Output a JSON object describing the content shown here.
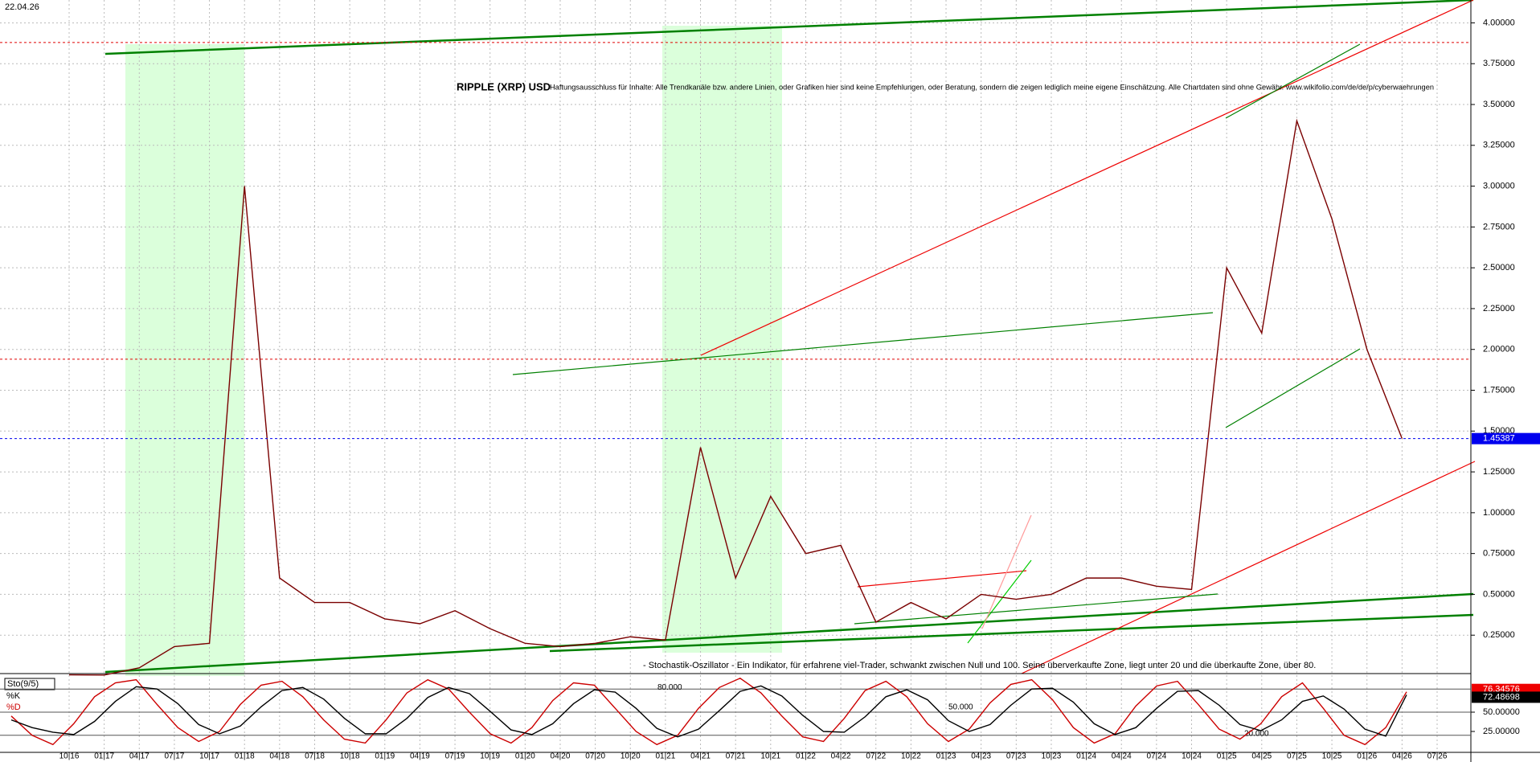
{
  "date_label": "22.04.26",
  "chart_data": [
    {
      "type": "line",
      "title": "RIPPLE (XRP) USD",
      "subtitle": "Haftungsausschluss für Inhalte: Alle Trendkanäle bzw. andere Linien, oder Grafiken hier sind keine Empfehlungen, oder Beratung, sondern die zeigen lediglich meine eigene Einschätzung. Alle Chartdaten sind ohne Gewähr. www.wikifolio.com/de/de/p/cyberwaehrungen",
      "categories": [
        "10|16",
        "01|17",
        "04|17",
        "07|17",
        "10|17",
        "01|18",
        "04|18",
        "07|18",
        "10|18",
        "01|19",
        "04|19",
        "07|19",
        "10|19",
        "01|20",
        "04|20",
        "07|20",
        "10|20",
        "01|21",
        "04|21",
        "07|21",
        "10|21",
        "01|22",
        "04|22",
        "07|22",
        "10|22",
        "01|23",
        "04|23",
        "07|23",
        "10|23",
        "01|24",
        "04|24",
        "07|24",
        "10|24",
        "01|25",
        "04|25",
        "07|25",
        "10|25",
        "01|26",
        "04|26",
        "07|26"
      ],
      "series": [
        {
          "name": "XRP USD",
          "color": "#7a0000",
          "values": [
            0.007,
            0.006,
            0.05,
            0.18,
            0.2,
            3.0,
            0.6,
            0.45,
            0.45,
            0.35,
            0.32,
            0.4,
            0.29,
            0.2,
            0.18,
            0.2,
            0.24,
            0.22,
            1.4,
            0.6,
            1.1,
            0.75,
            0.8,
            0.33,
            0.45,
            0.35,
            0.5,
            0.47,
            0.5,
            0.6,
            0.6,
            0.55,
            0.53,
            2.5,
            2.1,
            3.4,
            2.8,
            2.0,
            1.45387,
            null
          ]
        }
      ],
      "ylim": [
        0,
        4.14
      ],
      "yticks": [
        {
          "value": 0.25,
          "label": "0.25000"
        },
        {
          "value": 0.5,
          "label": "0.50000"
        },
        {
          "value": 0.75,
          "label": "0.75000"
        },
        {
          "value": 1,
          "label": "1.00000"
        },
        {
          "value": 1.25,
          "label": "1.25000"
        },
        {
          "value": 1.5,
          "label": "1.50000"
        },
        {
          "value": 1.75,
          "label": "1.75000"
        },
        {
          "value": 2,
          "label": "2.00000"
        },
        {
          "value": 2.25,
          "label": "2.25000"
        },
        {
          "value": 2.5,
          "label": "2.50000"
        },
        {
          "value": 2.75,
          "label": "2.75000"
        },
        {
          "value": 3,
          "label": "3.00000"
        },
        {
          "value": 3.25,
          "label": "3.25000"
        },
        {
          "value": 3.5,
          "label": "3.50000"
        },
        {
          "value": 3.75,
          "label": "3.75000"
        },
        {
          "value": 4,
          "label": "4.00000"
        }
      ],
      "hlines": [
        {
          "value": 3.88,
          "color": "#e00000"
        },
        {
          "value": 1.94,
          "color": "#e00000"
        }
      ],
      "last_color": "#0000ee",
      "grid": true
    },
    {
      "type": "line",
      "title": "Sto(9/5)",
      "annotation": "- Stochastik-Oszillator - Ein Indikator, für erfahrene viel-Trader, schwankt zwischen Null und 100. Seine überverkaufte Zone, liegt unter 20 und die überkaufte Zone, über 80.",
      "series": [
        {
          "name": "%K",
          "color": "#cc0000",
          "values": [
            45,
            20,
            8,
            35,
            70,
            88,
            92,
            60,
            30,
            12,
            25,
            60,
            85,
            90,
            70,
            40,
            15,
            10,
            40,
            75,
            92,
            80,
            50,
            22,
            10,
            30,
            65,
            88,
            85,
            55,
            25,
            8,
            20,
            55,
            82,
            94,
            75,
            45,
            18,
            12,
            42,
            78,
            90,
            70,
            35,
            12,
            28,
            62,
            86,
            92,
            66,
            30,
            10,
            22,
            58,
            84,
            90,
            60,
            28,
            15,
            35,
            70,
            88,
            55,
            20,
            8,
            30,
            76.34576
          ]
        },
        {
          "name": "%D",
          "color": "#000000",
          "values": [
            40,
            30,
            24,
            21,
            38,
            64,
            83,
            80,
            61,
            34,
            22,
            32,
            57,
            78,
            82,
            67,
            42,
            22,
            22,
            42,
            69,
            82,
            74,
            51,
            27,
            21,
            35,
            61,
            79,
            76,
            55,
            29,
            18,
            28,
            52,
            77,
            84,
            71,
            46,
            25,
            24,
            44,
            70,
            79,
            66,
            39,
            25,
            34,
            59,
            80,
            81,
            63,
            35,
            21,
            30,
            55,
            77,
            78,
            59,
            34,
            26,
            40,
            64,
            71,
            54,
            28,
            19,
            72.48698
          ]
        }
      ],
      "ylim": [
        0,
        100
      ],
      "yticks": [
        {
          "value": 25,
          "label": "25.00000"
        },
        {
          "value": 50,
          "label": "50.00000"
        }
      ],
      "levels": [
        {
          "value": 80,
          "label": "80.000"
        },
        {
          "value": 50,
          "label": "50.000"
        },
        {
          "value": 20,
          "label": "20.000"
        }
      ]
    }
  ]
}
